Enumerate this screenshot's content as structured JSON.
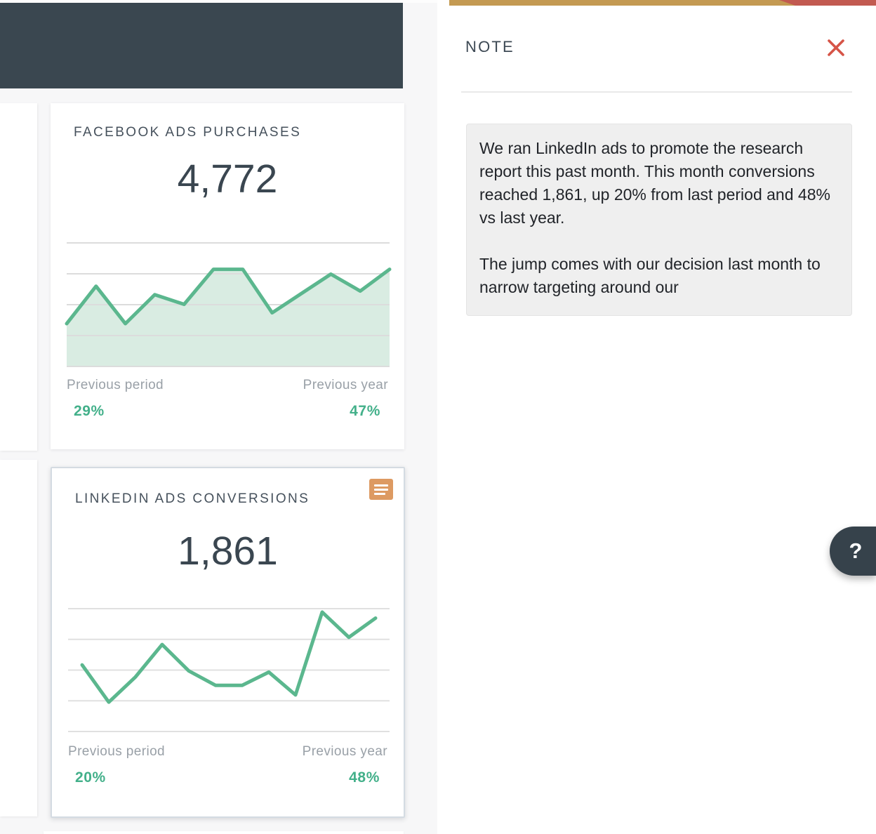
{
  "note_panel": {
    "title": "NOTE",
    "paragraphs": [
      "We ran LinkedIn ads to promote the research report this past month. This month conversions reached 1,861, up 20% from last period and 48% vs last year.",
      "The jump comes with our decision last month to narrow targeting around our"
    ]
  },
  "help": {
    "label": "?"
  },
  "cards": [
    {
      "title": "FACEBOOK ADS PURCHASES",
      "value": "4,772",
      "compare": [
        {
          "label": "Previous period",
          "value": "29%"
        },
        {
          "label": "Previous year",
          "value": "47%"
        }
      ]
    },
    {
      "title": "LINKEDIN ADS CONVERSIONS",
      "value": "1,861",
      "has_note_indicator": true,
      "compare": [
        {
          "label": "Previous period",
          "value": "20%"
        },
        {
          "label": "Previous year",
          "value": "48%"
        }
      ]
    }
  ],
  "chart_data": [
    {
      "type": "area",
      "title": "Facebook Ads Purchases trend",
      "x": [
        1,
        2,
        3,
        4,
        5,
        6,
        7,
        8,
        9,
        10,
        11,
        12
      ],
      "values": [
        34,
        65,
        34,
        58,
        50,
        79,
        79,
        43,
        59,
        75,
        61,
        79
      ],
      "ylim": [
        0,
        100
      ],
      "gridlines": 5,
      "legend": false,
      "pad_x": 0,
      "line_color": "#5bb78e",
      "fill_color": "#d9ece2",
      "grid_color": "#dcdcdc"
    },
    {
      "type": "line",
      "title": "LinkedIn Ads Conversions trend",
      "x": [
        1,
        2,
        3,
        4,
        5,
        6,
        7,
        8,
        9,
        10,
        11,
        12
      ],
      "values": [
        54,
        23,
        44,
        71,
        49,
        37,
        37,
        48,
        29,
        98,
        77,
        93
      ],
      "ylim": [
        0,
        100
      ],
      "gridlines": 5,
      "legend": false,
      "pad_x": 20,
      "line_color": "#5bb78e",
      "fill_color": "none",
      "grid_color": "#e0e0e0"
    }
  ],
  "colors": {
    "accent_green": "#43b08a",
    "chart_green": "#5bb78e",
    "note_orange": "#dd9a62",
    "close_red": "#d65447",
    "bar_gold": "#c49a52",
    "bar_red": "#c25a50",
    "dark_slate": "#3a4750"
  }
}
